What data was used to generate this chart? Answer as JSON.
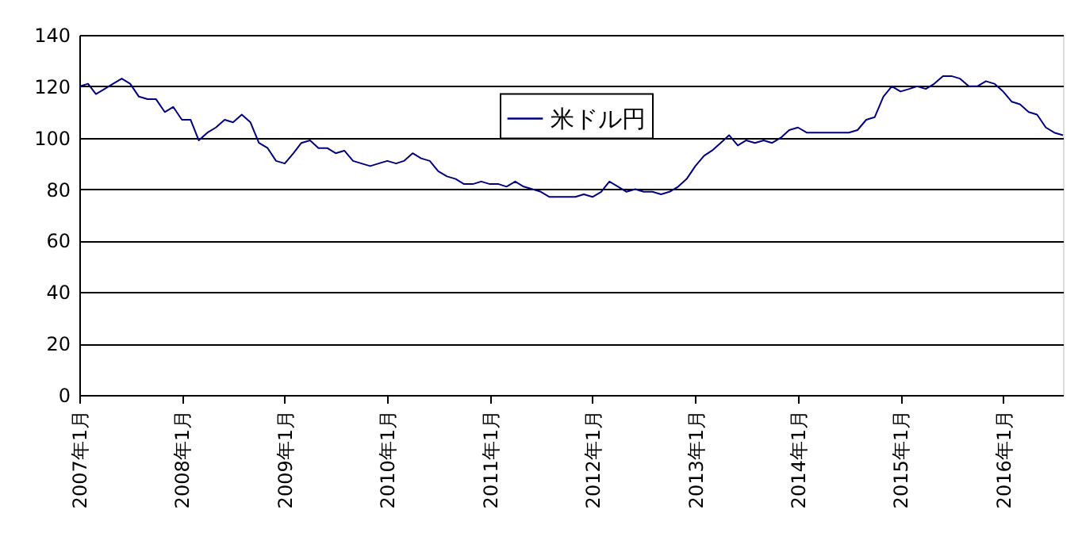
{
  "chart_data": {
    "type": "line",
    "xlim": [
      "2007-01",
      "2016-08"
    ],
    "xticks": [
      {
        "value": "2007-01",
        "label": "2007年1月"
      },
      {
        "value": "2008-01",
        "label": "2008年1月"
      },
      {
        "value": "2009-01",
        "label": "2009年1月"
      },
      {
        "value": "2010-01",
        "label": "2010年1月"
      },
      {
        "value": "2011-01",
        "label": "2011年1月"
      },
      {
        "value": "2012-01",
        "label": "2012年1月"
      },
      {
        "value": "2013-01",
        "label": "2013年1月"
      },
      {
        "value": "2014-01",
        "label": "2014年1月"
      },
      {
        "value": "2015-01",
        "label": "2015年1月"
      },
      {
        "value": "2016-01",
        "label": "2016年1月"
      }
    ],
    "ylim": [
      0,
      140
    ],
    "yticks": [
      0,
      20,
      40,
      60,
      80,
      100,
      120,
      140
    ],
    "grid": "y",
    "legend": "top",
    "marker": "none",
    "line_style": "solid",
    "x": [
      "2007-01",
      "2007-02",
      "2007-03",
      "2007-04",
      "2007-05",
      "2007-06",
      "2007-07",
      "2007-08",
      "2007-09",
      "2007-10",
      "2007-11",
      "2007-12",
      "2008-01",
      "2008-02",
      "2008-03",
      "2008-04",
      "2008-05",
      "2008-06",
      "2008-07",
      "2008-08",
      "2008-09",
      "2008-10",
      "2008-11",
      "2008-12",
      "2009-01",
      "2009-02",
      "2009-03",
      "2009-04",
      "2009-05",
      "2009-06",
      "2009-07",
      "2009-08",
      "2009-09",
      "2009-10",
      "2009-11",
      "2009-12",
      "2010-01",
      "2010-02",
      "2010-03",
      "2010-04",
      "2010-05",
      "2010-06",
      "2010-07",
      "2010-08",
      "2010-09",
      "2010-10",
      "2010-11",
      "2010-12",
      "2011-01",
      "2011-02",
      "2011-03",
      "2011-04",
      "2011-05",
      "2011-06",
      "2011-07",
      "2011-08",
      "2011-09",
      "2011-10",
      "2011-11",
      "2011-12",
      "2012-01",
      "2012-02",
      "2012-03",
      "2012-04",
      "2012-05",
      "2012-06",
      "2012-07",
      "2012-08",
      "2012-09",
      "2012-10",
      "2012-11",
      "2012-12",
      "2013-01",
      "2013-02",
      "2013-03",
      "2013-04",
      "2013-05",
      "2013-06",
      "2013-07",
      "2013-08",
      "2013-09",
      "2013-10",
      "2013-11",
      "2013-12",
      "2014-01",
      "2014-02",
      "2014-03",
      "2014-04",
      "2014-05",
      "2014-06",
      "2014-07",
      "2014-08",
      "2014-09",
      "2014-10",
      "2014-11",
      "2014-12",
      "2015-01",
      "2015-02",
      "2015-03",
      "2015-04",
      "2015-05",
      "2015-06",
      "2015-07",
      "2015-08",
      "2015-09",
      "2015-10",
      "2015-11",
      "2015-12",
      "2016-01",
      "2016-02",
      "2016-03",
      "2016-04",
      "2016-05",
      "2016-06",
      "2016-07",
      "2016-08"
    ],
    "series": [
      {
        "name": "米ドル円",
        "color": "#000080",
        "values": [
          120,
          121,
          117,
          119,
          121,
          123,
          121,
          116,
          115,
          115,
          110,
          112,
          107,
          107,
          99,
          102,
          104,
          107,
          106,
          109,
          106,
          98,
          96,
          91,
          90,
          94,
          98,
          99,
          96,
          96,
          94,
          95,
          91,
          90,
          89,
          90,
          91,
          90,
          91,
          94,
          92,
          91,
          87,
          85,
          84,
          82,
          82,
          83,
          82,
          82,
          81,
          83,
          81,
          80,
          79,
          77,
          77,
          77,
          77,
          78,
          77,
          79,
          83,
          81,
          79,
          80,
          79,
          79,
          78,
          79,
          81,
          84,
          89,
          93,
          95,
          98,
          101,
          97,
          99,
          98,
          99,
          98,
          100,
          103,
          104,
          102,
          102,
          102,
          102,
          102,
          102,
          103,
          107,
          108,
          116,
          120,
          118,
          119,
          120,
          119,
          121,
          124,
          124,
          123,
          120,
          120,
          122,
          121,
          118,
          114,
          113,
          110,
          109,
          104,
          102,
          101
        ]
      }
    ]
  }
}
